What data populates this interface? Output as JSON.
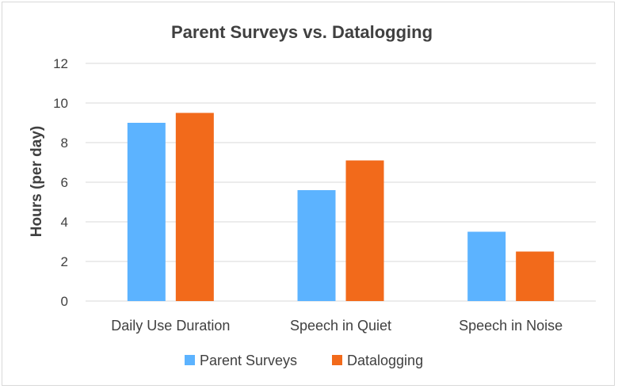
{
  "chart_data": {
    "type": "bar",
    "title": "Parent Surveys vs. Datalogging",
    "xlabel": "",
    "ylabel": "Hours (per day)",
    "categories": [
      "Daily Use Duration",
      "Speech in Quiet",
      "Speech in Noise"
    ],
    "series": [
      {
        "name": "Parent Surveys",
        "values": [
          9.0,
          5.6,
          3.5
        ],
        "color": "#5cb3ff"
      },
      {
        "name": "Datalogging",
        "values": [
          9.5,
          7.1,
          2.5
        ],
        "color": "#f26a1b"
      }
    ],
    "ylim": [
      0,
      12
    ],
    "yticks": [
      "0",
      "2",
      "4",
      "6",
      "8",
      "10",
      "12"
    ],
    "grid": true,
    "legend_position": "bottom",
    "gridline_color": "#d9d9d9"
  }
}
